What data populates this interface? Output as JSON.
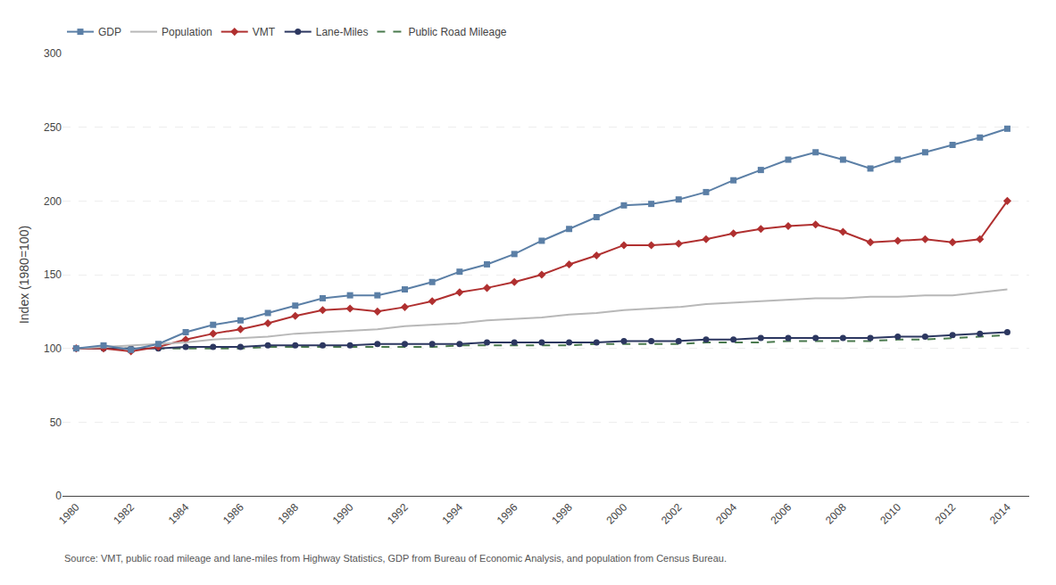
{
  "chart_data": {
    "type": "line",
    "y_label": "Index (1980=100)",
    "annotations": [
      "Source: VMT, public road mileage and lane-miles from Highway Statistics, GDP from Bureau of Economic Analysis, and population from Census Bureau."
    ],
    "x": [
      1980,
      1981,
      1982,
      1983,
      1984,
      1985,
      1986,
      1987,
      1988,
      1989,
      1990,
      1991,
      1992,
      1993,
      1994,
      1995,
      1996,
      1997,
      1998,
      1999,
      2000,
      2001,
      2002,
      2003,
      2004,
      2005,
      2006,
      2007,
      2008,
      2009,
      2010,
      2011,
      2012,
      2013,
      2014
    ],
    "series": [
      {
        "name": "GDP",
        "color": "#5b7fa6",
        "marker": "square",
        "line_style": "solid",
        "values": [
          100,
          102,
          99,
          103,
          111,
          116,
          119,
          124,
          129,
          134,
          136,
          136,
          140,
          145,
          152,
          157,
          164,
          173,
          181,
          189,
          197,
          198,
          201,
          206,
          214,
          221,
          228,
          233,
          228,
          222,
          228,
          233,
          238,
          243,
          249
        ]
      },
      {
        "name": "Population",
        "color": "#b8b8b8",
        "marker": "none",
        "line_style": "solid",
        "values": [
          100,
          101,
          102,
          103,
          104,
          106,
          107,
          108,
          110,
          111,
          112,
          113,
          115,
          116,
          117,
          119,
          120,
          121,
          123,
          124,
          126,
          127,
          128,
          130,
          131,
          132,
          133,
          134,
          134,
          135,
          135,
          136,
          136,
          138,
          140
        ]
      },
      {
        "name": "VMT",
        "color": "#b03030",
        "marker": "diamond",
        "line_style": "solid",
        "values": [
          100,
          100,
          98,
          101,
          106,
          110,
          113,
          117,
          122,
          126,
          127,
          125,
          128,
          132,
          138,
          141,
          145,
          150,
          157,
          163,
          170,
          170,
          171,
          174,
          178,
          181,
          183,
          184,
          179,
          172,
          173,
          174,
          172,
          174,
          200
        ]
      },
      {
        "name": "Lane-Miles",
        "color": "#2c3760",
        "marker": "circle",
        "line_style": "solid",
        "values": [
          100,
          100,
          100,
          100,
          101,
          101,
          101,
          102,
          102,
          102,
          102,
          103,
          103,
          103,
          103,
          104,
          104,
          104,
          104,
          104,
          105,
          105,
          105,
          106,
          106,
          107,
          107,
          107,
          107,
          107,
          108,
          108,
          109,
          110,
          111
        ]
      },
      {
        "name": "Public Road Mileage",
        "color": "#4a7a4e",
        "marker": "none",
        "line_style": "dashed",
        "values": [
          100,
          100,
          100,
          100,
          100,
          100,
          100,
          101,
          101,
          101,
          101,
          101,
          101,
          101,
          102,
          102,
          102,
          102,
          102,
          103,
          103,
          103,
          103,
          104,
          104,
          104,
          105,
          105,
          105,
          105,
          106,
          106,
          107,
          108,
          109
        ]
      }
    ],
    "xlim": [
      1979.5,
      2014.8
    ],
    "xticks": [
      1980,
      1982,
      1984,
      1986,
      1988,
      1990,
      1992,
      1994,
      1996,
      1998,
      2000,
      2002,
      2004,
      2006,
      2008,
      2010,
      2012,
      2014
    ],
    "ylim": [
      0,
      300
    ],
    "yticks": [
      0,
      50,
      100,
      150,
      200,
      250,
      300
    ],
    "grid": "y",
    "legend": "top left"
  }
}
